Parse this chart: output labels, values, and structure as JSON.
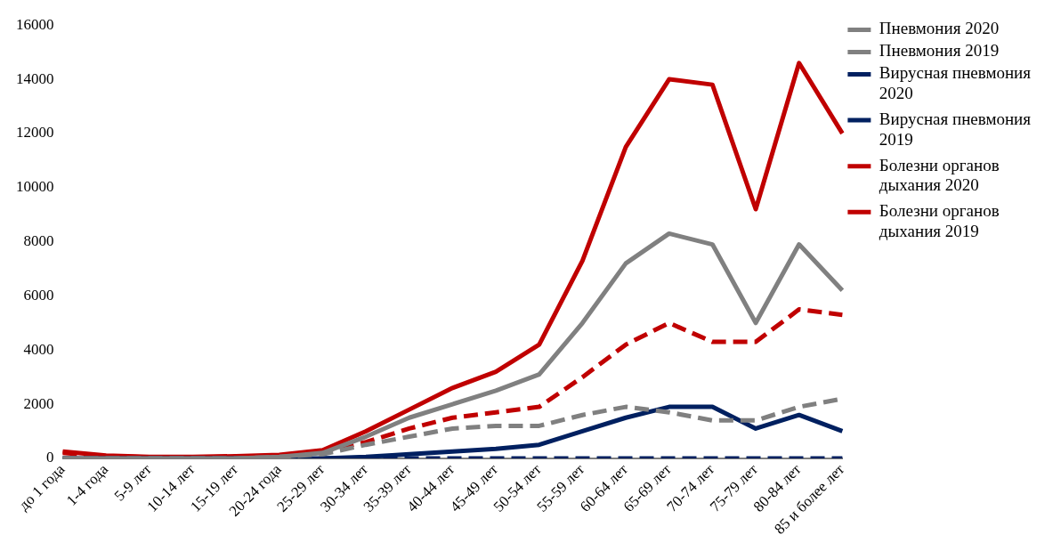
{
  "chart_data": {
    "type": "line",
    "categories": [
      "до 1 года",
      "1-4 года",
      "5-9 лет",
      "10-14 лет",
      "15-19 лет",
      "20-24 года",
      "25-29 лет",
      "30-34 лет",
      "35-39 лет",
      "40-44 лет",
      "45-49 лет",
      "50-54 лет",
      "55-59 лет",
      "60-64 лет",
      "65-69 лет",
      "70-74 лет",
      "75-79 лет",
      "80-84 лет",
      "85 и более лет"
    ],
    "series": [
      {
        "name": "Пневмония 2020",
        "color": "#808080",
        "line_style": "solid",
        "values": [
          0,
          0,
          0,
          0,
          0,
          50,
          200,
          800,
          1500,
          2000,
          2500,
          3100,
          5000,
          7200,
          8300,
          7900,
          5000,
          7900,
          6200
        ]
      },
      {
        "name": "Пневмония 2019",
        "color": "#808080",
        "line_style": "dashed",
        "values": [
          0,
          0,
          0,
          0,
          0,
          50,
          150,
          500,
          800,
          1100,
          1200,
          1200,
          1600,
          1900,
          1700,
          1400,
          1400,
          1900,
          2200
        ]
      },
      {
        "name": "Вирусная пневмония 2020",
        "color": "#002060",
        "line_style": "solid",
        "values": [
          0,
          0,
          0,
          0,
          0,
          0,
          0,
          50,
          150,
          250,
          350,
          500,
          1000,
          1500,
          1900,
          1900,
          1100,
          1600,
          1000
        ]
      },
      {
        "name": "Вирусная пневмония 2019",
        "color": "#002060",
        "line_style": "dashed",
        "values": [
          0,
          0,
          0,
          0,
          0,
          0,
          0,
          0,
          0,
          0,
          0,
          0,
          0,
          0,
          0,
          0,
          0,
          0,
          0
        ]
      },
      {
        "name": "Болезни органов дыхания 2020",
        "color": "#c00000",
        "line_style": "solid",
        "values": [
          250,
          100,
          50,
          50,
          80,
          130,
          300,
          1000,
          1800,
          2600,
          3200,
          4200,
          7300,
          11500,
          14000,
          13800,
          9200,
          14600,
          12000
        ]
      },
      {
        "name": "Болезни органов дыхания 2019",
        "color": "#c00000",
        "line_style": "dashed",
        "values": [
          200,
          80,
          40,
          40,
          60,
          100,
          250,
          600,
          1100,
          1500,
          1700,
          1900,
          3000,
          4200,
          5000,
          4300,
          4300,
          5500,
          5300
        ]
      }
    ],
    "ylim": [
      0,
      16000
    ],
    "yticks": [
      0,
      2000,
      4000,
      6000,
      8000,
      10000,
      12000,
      14000,
      16000
    ],
    "grid": false,
    "legend": "right",
    "marker": "none"
  }
}
